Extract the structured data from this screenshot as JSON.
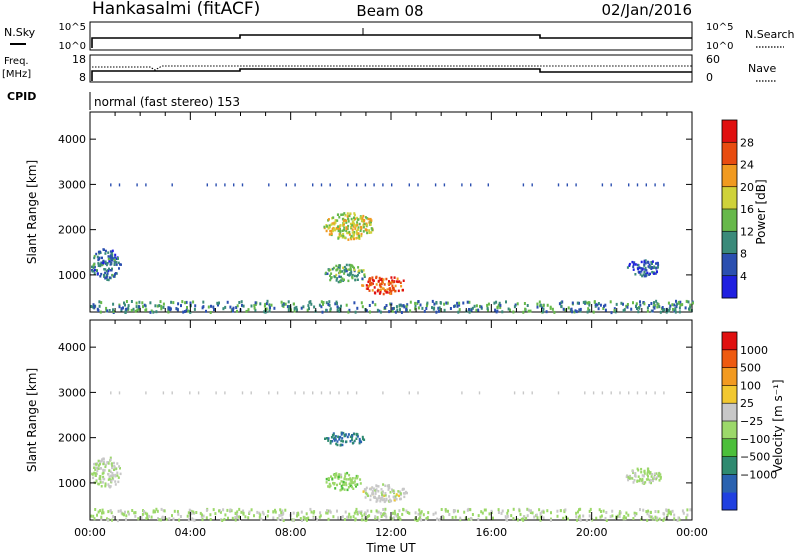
{
  "header": {
    "station": "Hankasalmi (fitACF)",
    "beam": "Beam 08",
    "date": "02/Jan/2016"
  },
  "nsky_panel": {
    "left_label": "N.Sky",
    "right_label": "N.Search",
    "ticks_left": [
      "10^5",
      "10^0"
    ],
    "ticks_right": [
      "10^5",
      "10^0"
    ]
  },
  "freq_panel": {
    "left_label_1": "Freq.",
    "left_label_2": "[MHz]",
    "right_label": "Nave",
    "ticks_left": [
      "18",
      "8"
    ],
    "ticks_right": [
      "60",
      "0"
    ]
  },
  "cpid": {
    "label": "CPID",
    "text": "normal (fast stereo) 153"
  },
  "chart_data": [
    {
      "type": "heatmap",
      "title": "",
      "xlabel": "",
      "ylabel": "Slant Range [km]",
      "xlim": [
        0,
        24
      ],
      "ylim": [
        180,
        4600
      ],
      "y_ticks": [
        "1000",
        "2000",
        "3000",
        "4000"
      ],
      "colorbar": {
        "label": "Power [dB]",
        "tick_labels": [
          "4",
          "8",
          "12",
          "16",
          "20",
          "24",
          "28"
        ],
        "colors": [
          "#1f1fe0",
          "#2b4fb0",
          "#3a8a7a",
          "#66b84a",
          "#cfd23a",
          "#f09a20",
          "#e84c10",
          "#e01010"
        ],
        "range": [
          0,
          32
        ]
      },
      "regions": [
        {
          "t": [
            0.0,
            1.2
          ],
          "r": [
            900,
            1600
          ],
          "v": 8
        },
        {
          "t": [
            9.3,
            11.3
          ],
          "r": [
            1800,
            2400
          ],
          "v": 18
        },
        {
          "t": [
            10.8,
            12.6
          ],
          "r": [
            600,
            1000
          ],
          "v": 26
        },
        {
          "t": [
            9.3,
            11.0
          ],
          "r": [
            850,
            1250
          ],
          "v": 12
        },
        {
          "t": [
            21.3,
            22.8
          ],
          "r": [
            1000,
            1350
          ],
          "v": 6
        },
        {
          "t": [
            0.0,
            24.0
          ],
          "r": [
            200,
            450
          ],
          "v": 10
        }
      ]
    },
    {
      "type": "heatmap",
      "title": "",
      "xlabel": "Time UT",
      "ylabel": "Slant Range [km]",
      "xlim": [
        0,
        24
      ],
      "ylim": [
        180,
        4600
      ],
      "x_ticks": [
        "00:00",
        "04:00",
        "08:00",
        "12:00",
        "16:00",
        "20:00",
        "00:00"
      ],
      "y_ticks": [
        "1000",
        "2000",
        "3000",
        "4000"
      ],
      "colorbar": {
        "label": "Velocity [m s⁻¹]",
        "tick_labels": [
          "1000",
          "500",
          "100",
          "25",
          "−25",
          "−100",
          "−500",
          "−1000"
        ],
        "colors": [
          "#2040e0",
          "#2a62b0",
          "#2f8a70",
          "#4bbf3a",
          "#9cd86a",
          "#c8c8c8",
          "#f2c830",
          "#f29a20",
          "#ee5a10",
          "#e01010"
        ],
        "range": [
          -1200,
          1200
        ]
      },
      "regions": [
        {
          "t": [
            0.0,
            1.2
          ],
          "r": [
            900,
            1600
          ],
          "v": 0
        },
        {
          "t": [
            9.3,
            10.9
          ],
          "r": [
            1850,
            2150
          ],
          "v": -700
        },
        {
          "t": [
            10.8,
            12.6
          ],
          "r": [
            600,
            1000
          ],
          "v": 120
        },
        {
          "t": [
            9.3,
            10.8
          ],
          "r": [
            850,
            1250
          ],
          "v": -150
        },
        {
          "t": [
            21.3,
            22.8
          ],
          "r": [
            1000,
            1350
          ],
          "v": -60
        },
        {
          "t": [
            0.0,
            24.0
          ],
          "r": [
            200,
            450
          ],
          "v": -30
        }
      ]
    }
  ]
}
